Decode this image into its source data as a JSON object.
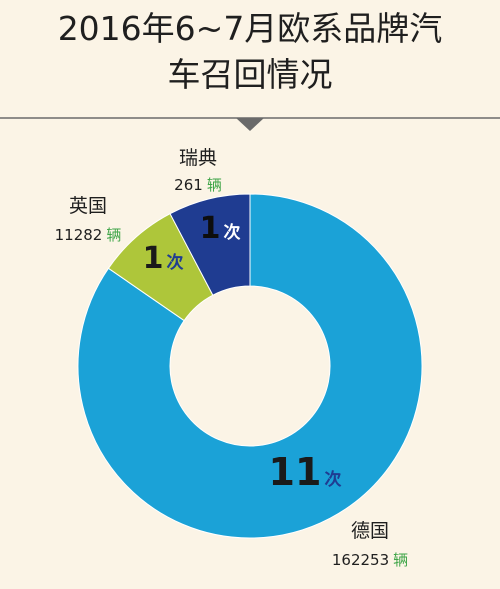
{
  "title": {
    "line1": "2016年6~7月欧系品牌汽",
    "line2": "车召回情况"
  },
  "colors": {
    "background": "#fbf4e6",
    "germany": "#1ba2d7",
    "uk": "#aec63a",
    "sweden": "#1f3c91",
    "unit_green": "#3fa548",
    "divider": "#6a6a6a"
  },
  "chart_data": {
    "type": "pie",
    "donut": true,
    "title": "2016年6~7月欧系品牌汽车召回情况",
    "value_field": "召回次数",
    "slices": [
      {
        "label": "德国",
        "value": 11,
        "value_text": "11",
        "count_unit": "次",
        "vehicles": "162253",
        "vehicle_unit": "辆",
        "color": "#1ba2d7"
      },
      {
        "label": "英国",
        "value": 1,
        "value_text": "1",
        "count_unit": "次",
        "vehicles": "11282",
        "vehicle_unit": "辆",
        "color": "#aec63a"
      },
      {
        "label": "瑞典",
        "value": 1,
        "value_text": "1",
        "count_unit": "次",
        "vehicles": "261",
        "vehicle_unit": "辆",
        "color": "#1f3c91"
      }
    ]
  }
}
